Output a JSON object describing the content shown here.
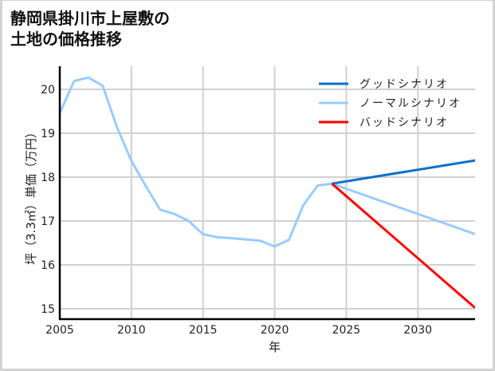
{
  "title_line1": "静岡県掛川市上屋敷の",
  "title_line2": "土地の価格推移",
  "chart_data": {
    "type": "line",
    "title": "静岡県掛川市上屋敷の土地の価格推移",
    "xlabel": "年",
    "ylabel": "坪（3.3㎡）単価（万円）",
    "xlim": [
      2005,
      2034
    ],
    "ylim": [
      14.8,
      20.5
    ],
    "xticks": [
      2005,
      2010,
      2015,
      2020,
      2025,
      2030
    ],
    "yticks": [
      15,
      16,
      17,
      18,
      19,
      20
    ],
    "grid": true,
    "legend_position": "upper right",
    "series": [
      {
        "name": "グッドシナリオ",
        "color": "#0a6fc9",
        "x": [
          2024,
          2034
        ],
        "values": [
          17.85,
          18.38
        ]
      },
      {
        "name": "ノーマルシナリオ",
        "color": "#99ccff",
        "x": [
          2005,
          2006,
          2007,
          2008,
          2009,
          2010,
          2011,
          2012,
          2013,
          2014,
          2015,
          2016,
          2017,
          2018,
          2019,
          2020,
          2021,
          2022,
          2023,
          2024,
          2034
        ],
        "values": [
          19.46,
          20.19,
          20.27,
          20.08,
          19.13,
          18.37,
          17.8,
          17.26,
          17.16,
          17.0,
          16.7,
          16.63,
          16.61,
          16.58,
          16.55,
          16.42,
          16.57,
          17.36,
          17.81,
          17.85,
          16.7
        ]
      },
      {
        "name": "バッドシナリオ",
        "color": "#ff0000",
        "x": [
          2024,
          2034
        ],
        "values": [
          17.85,
          15.02
        ]
      }
    ]
  }
}
